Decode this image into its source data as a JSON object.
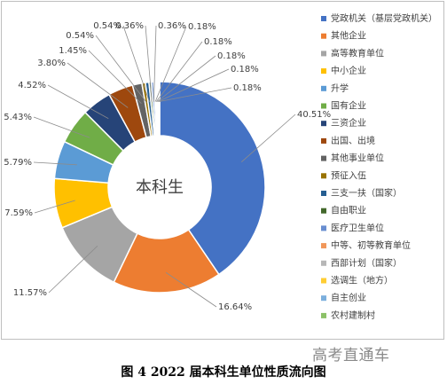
{
  "chart_data": {
    "type": "pie",
    "center_label": "本科生",
    "categories": [
      "党政机关（基层党政机关）",
      "其他企业",
      "高等教育单位",
      "中小企业",
      "升学",
      "国有企业",
      "三资企业",
      "出国、出境",
      "其他事业单位",
      "预征入伍",
      "三支一扶（国家）",
      "自由职业",
      "医疗卫生单位",
      "中等、初等教育单位",
      "西部计划（国家）",
      "选调生（地方）",
      "自主创业",
      "农村建制村"
    ],
    "values": [
      40.51,
      16.64,
      11.57,
      7.59,
      5.79,
      5.43,
      4.52,
      3.8,
      1.45,
      0.54,
      0.54,
      0.36,
      0.36,
      0.18,
      0.18,
      0.18,
      0.18,
      0.18
    ],
    "labels": [
      "40.51%",
      "16.64%",
      "11.57%",
      "7.59%",
      "5.79%",
      "5.43%",
      "4.52%",
      "3.80%",
      "1.45%",
      "0.54%",
      "0.54%",
      "0.36%",
      "0.36%",
      "0.18%",
      "0.18%",
      "0.18%",
      "0.18%",
      "0.18%"
    ],
    "colors": [
      "#4472C4",
      "#ED7D31",
      "#A5A5A5",
      "#FFC000",
      "#5B9BD5",
      "#70AD47",
      "#264478",
      "#9E480E",
      "#636363",
      "#997300",
      "#255E91",
      "#43682B",
      "#698ED0",
      "#F1975A",
      "#B7B7B7",
      "#FFCD33",
      "#7CAFDD",
      "#8CC168"
    ],
    "legend_position": "right"
  },
  "watermark": "高考直通车",
  "caption": "图 4  2022 届本科生单位性质流向图"
}
